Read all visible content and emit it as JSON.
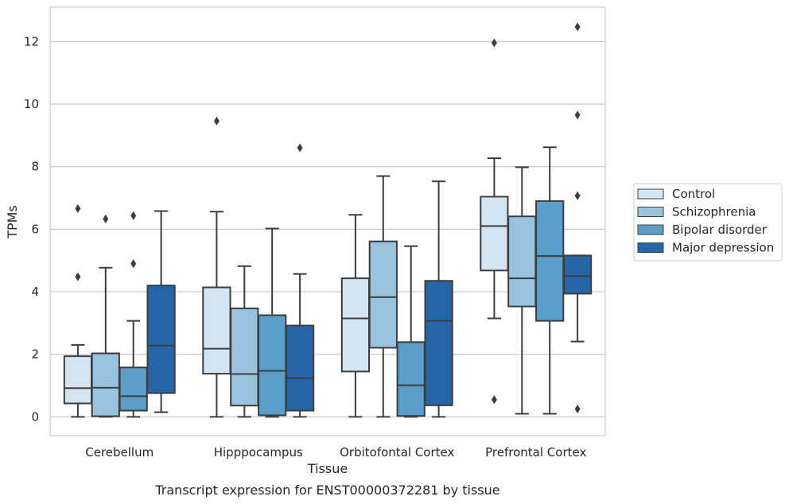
{
  "caption": "Transcript expression for ENST00000372281 by tissue",
  "chart_data": {
    "type": "box",
    "title": "",
    "xlabel": "Tissue",
    "ylabel": "TPMs",
    "ylim": [
      -0.6,
      13.1
    ],
    "yticks": [
      0,
      2,
      4,
      6,
      8,
      10,
      12
    ],
    "grid": "horizontal",
    "legend_position": "right",
    "categories": [
      "Cerebellum",
      "Hipppocampus",
      "Orbitofontal Cortex",
      "Prefrontal Cortex"
    ],
    "series": [
      {
        "name": "Control",
        "color": "#d3e4f3",
        "boxes": [
          {
            "whislo": 0.0,
            "q1": 0.43,
            "med": 0.92,
            "q3": 1.94,
            "whishi": 2.3,
            "fliers": [
              4.48,
              6.66
            ]
          },
          {
            "whislo": 0.0,
            "q1": 1.38,
            "med": 2.18,
            "q3": 4.14,
            "whishi": 6.56,
            "fliers": [
              9.46
            ]
          },
          {
            "whislo": 0.0,
            "q1": 1.45,
            "med": 3.15,
            "q3": 4.43,
            "whishi": 6.46,
            "fliers": []
          },
          {
            "whislo": 3.15,
            "q1": 4.68,
            "med": 6.1,
            "q3": 7.04,
            "whishi": 8.27,
            "fliers": [
              0.55,
              11.96
            ]
          }
        ]
      },
      {
        "name": "Schizophrenia",
        "color": "#9ac3df",
        "boxes": [
          {
            "whislo": 0.0,
            "q1": 0.02,
            "med": 0.93,
            "q3": 2.03,
            "whishi": 4.77,
            "fliers": [
              6.33
            ]
          },
          {
            "whislo": 0.0,
            "q1": 0.36,
            "med": 1.37,
            "q3": 3.47,
            "whishi": 4.82,
            "fliers": []
          },
          {
            "whislo": 0.0,
            "q1": 2.21,
            "med": 3.83,
            "q3": 5.61,
            "whishi": 7.7,
            "fliers": []
          },
          {
            "whislo": 0.1,
            "q1": 3.53,
            "med": 4.43,
            "q3": 6.41,
            "whishi": 7.98,
            "fliers": []
          }
        ]
      },
      {
        "name": "Bipolar disorder",
        "color": "#5a9ec9",
        "boxes": [
          {
            "whislo": 0.0,
            "q1": 0.2,
            "med": 0.66,
            "q3": 1.58,
            "whishi": 3.07,
            "fliers": [
              4.9,
              6.43
            ]
          },
          {
            "whislo": 0.0,
            "q1": 0.05,
            "med": 1.47,
            "q3": 3.25,
            "whishi": 6.02,
            "fliers": []
          },
          {
            "whislo": 0.0,
            "q1": 0.03,
            "med": 1.01,
            "q3": 2.39,
            "whishi": 5.46,
            "fliers": []
          },
          {
            "whislo": 0.1,
            "q1": 3.07,
            "med": 5.14,
            "q3": 6.9,
            "whishi": 8.62,
            "fliers": []
          }
        ]
      },
      {
        "name": "Major depression",
        "color": "#2666a8",
        "boxes": [
          {
            "whislo": 0.15,
            "q1": 0.76,
            "med": 2.28,
            "q3": 4.2,
            "whishi": 6.58,
            "fliers": []
          },
          {
            "whislo": 0.0,
            "q1": 0.2,
            "med": 1.24,
            "q3": 2.92,
            "whishi": 4.57,
            "fliers": [
              8.6
            ]
          },
          {
            "whislo": 0.0,
            "q1": 0.37,
            "med": 3.07,
            "q3": 4.35,
            "whishi": 7.53,
            "fliers": []
          },
          {
            "whislo": 2.41,
            "q1": 3.94,
            "med": 4.5,
            "q3": 5.16,
            "whishi": 5.16,
            "fliers": [
              0.25,
              7.07,
              9.65,
              12.47
            ]
          }
        ]
      }
    ]
  }
}
